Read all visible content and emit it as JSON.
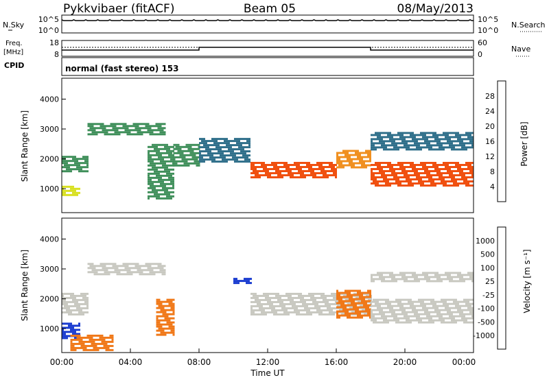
{
  "header": {
    "station": "Pykkvibaer (fitACF)",
    "beam": "Beam 05",
    "date": "08/May/2013"
  },
  "nsky_panel": {
    "left_label": "N.Sky",
    "right_label": "N.Search",
    "left_ticks": [
      "10^5",
      "10^0"
    ],
    "right_ticks": [
      "10^5",
      "10^0"
    ]
  },
  "freq_panel": {
    "left_label_1": "Freq.",
    "left_label_2": "[MHz]",
    "right_label": "Nave",
    "left_ticks": [
      "18",
      "8"
    ],
    "right_ticks": [
      "60",
      "0"
    ]
  },
  "cpid_panel": {
    "label": "CPID",
    "mode_text": "normal (fast stereo) 153"
  },
  "time_axis": {
    "label": "Time UT",
    "ticks": [
      "00:00",
      "04:00",
      "08:00",
      "12:00",
      "16:00",
      "20:00",
      "00:00"
    ]
  },
  "colors": {
    "power_scale": [
      "#1a14e6",
      "#2a40b0",
      "#2f6f8a",
      "#3f8f5a",
      "#7ec850",
      "#d8e020",
      "#f09020",
      "#f05010",
      "#e81818"
    ],
    "velocity_scale": [
      "#1a3cd0",
      "#2a80a0",
      "#2a9a4a",
      "#70d040",
      "#c8c8c0",
      "#c8c8c0",
      "#f0a030",
      "#f07818",
      "#f04010",
      "#e81818"
    ]
  },
  "chart_data": [
    {
      "type": "heatmap",
      "panel": "power",
      "xlabel": "",
      "ylabel": "Slant Range [km]",
      "xlim": [
        "00:00",
        "24:00"
      ],
      "ylim": [
        200,
        4700
      ],
      "yticks": [
        "4000",
        "3000",
        "2000",
        "1000"
      ],
      "colorbar_label": "Power [dB]",
      "colorbar_ticks": [
        "28",
        "24",
        "20",
        "16",
        "12",
        "8",
        "4"
      ],
      "bands": [
        {
          "hours": [
            0.0,
            1.5
          ],
          "range_km": [
            1600,
            2100
          ],
          "value_db": 14
        },
        {
          "hours": [
            0.0,
            1.0
          ],
          "range_km": [
            800,
            1100
          ],
          "value_db": 20
        },
        {
          "hours": [
            1.5,
            6.0
          ],
          "range_km": [
            2800,
            3200
          ],
          "value_db": 14
        },
        {
          "hours": [
            5.0,
            6.5
          ],
          "range_km": [
            700,
            2500
          ],
          "value_db": 12
        },
        {
          "hours": [
            6.5,
            8.0
          ],
          "range_km": [
            1800,
            2500
          ],
          "value_db": 14
        },
        {
          "hours": [
            8.0,
            11.0
          ],
          "range_km": [
            1900,
            2700
          ],
          "value_db": 10
        },
        {
          "hours": [
            11.0,
            16.0
          ],
          "range_km": [
            1400,
            1900
          ],
          "value_db": 28
        },
        {
          "hours": [
            16.0,
            18.0
          ],
          "range_km": [
            1700,
            2300
          ],
          "value_db": 26
        },
        {
          "hours": [
            18.0,
            24.0
          ],
          "range_km": [
            1100,
            1900
          ],
          "value_db": 30
        },
        {
          "hours": [
            18.0,
            24.0
          ],
          "range_km": [
            2300,
            2900
          ],
          "value_db": 8
        }
      ]
    },
    {
      "type": "heatmap",
      "panel": "velocity",
      "xlabel": "Time UT",
      "ylabel": "Slant Range [km]",
      "xlim": [
        "00:00",
        "24:00"
      ],
      "ylim": [
        200,
        4700
      ],
      "yticks": [
        "4000",
        "3000",
        "2000",
        "1000"
      ],
      "colorbar_label": "Velocity [m s⁻¹]",
      "colorbar_ticks": [
        "1000",
        "500",
        "100",
        "25",
        "-25",
        "-100",
        "-500",
        "-1000"
      ],
      "bands": [
        {
          "hours": [
            0.0,
            1.5
          ],
          "range_km": [
            1500,
            2200
          ],
          "value_ms": 0
        },
        {
          "hours": [
            0.0,
            1.0
          ],
          "range_km": [
            700,
            1200
          ],
          "value_ms": 800
        },
        {
          "hours": [
            0.5,
            3.0
          ],
          "range_km": [
            300,
            800
          ],
          "value_ms": -300
        },
        {
          "hours": [
            1.5,
            6.0
          ],
          "range_km": [
            2800,
            3200
          ],
          "value_ms": 0
        },
        {
          "hours": [
            5.5,
            6.5
          ],
          "range_km": [
            800,
            2000
          ],
          "value_ms": -400
        },
        {
          "hours": [
            10.0,
            11.0
          ],
          "range_km": [
            2500,
            2700
          ],
          "value_ms": 800
        },
        {
          "hours": [
            11.0,
            18.0
          ],
          "range_km": [
            1500,
            2200
          ],
          "value_ms": 0
        },
        {
          "hours": [
            16.0,
            18.0
          ],
          "range_km": [
            1400,
            2300
          ],
          "value_ms": -150
        },
        {
          "hours": [
            18.0,
            24.0
          ],
          "range_km": [
            1200,
            2000
          ],
          "value_ms": 0
        },
        {
          "hours": [
            18.0,
            24.0
          ],
          "range_km": [
            2600,
            2900
          ],
          "value_ms": 0
        }
      ]
    }
  ]
}
